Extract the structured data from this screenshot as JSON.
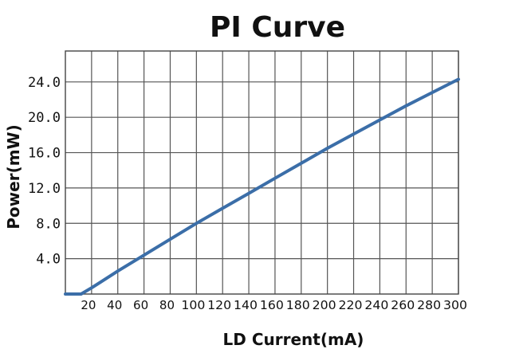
{
  "chart_data": {
    "type": "line",
    "title": "PI Curve",
    "xlabel": "LD Current(mA)",
    "ylabel": "Power(mW)",
    "xlim": [
      0,
      300
    ],
    "ylim": [
      0,
      27.5
    ],
    "x_ticks": [
      20,
      40,
      60,
      80,
      100,
      120,
      140,
      160,
      180,
      200,
      220,
      240,
      260,
      280,
      300
    ],
    "x_tick_labels": [
      "20",
      "40",
      "60",
      "80",
      "100",
      "120",
      "140",
      "160",
      "180",
      "200",
      "220",
      "240",
      "260",
      "280",
      "300"
    ],
    "y_ticks": [
      4,
      8,
      12,
      16,
      20,
      24
    ],
    "y_tick_labels": [
      "4.0",
      "8.0",
      "12.0",
      "16.0",
      "20.0",
      "24.0"
    ],
    "grid": true,
    "series": [
      {
        "color": "#3b6ea8",
        "x": [
          0,
          12,
          20,
          40,
          60,
          80,
          100,
          120,
          140,
          160,
          180,
          200,
          220,
          240,
          260,
          280,
          300
        ],
        "y": [
          0,
          0,
          0.7,
          2.6,
          4.4,
          6.2,
          8.0,
          9.7,
          11.4,
          13.1,
          14.8,
          16.5,
          18.1,
          19.7,
          21.3,
          22.8,
          24.3
        ]
      }
    ]
  }
}
